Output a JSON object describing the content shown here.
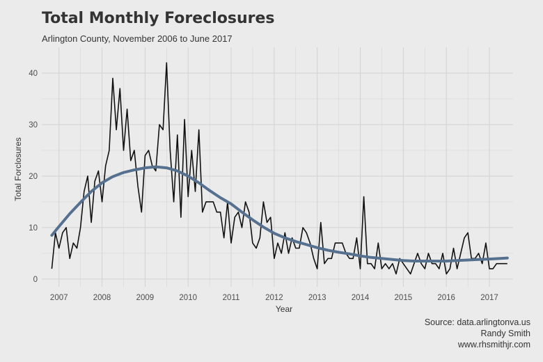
{
  "chart_data": {
    "type": "line",
    "title": "Total Monthly Foreclosures",
    "subtitle": "Arlington County, November 2006 to June 2017",
    "xlabel": "Year",
    "ylabel": "Total Forclosures",
    "xlim": [
      2006.6,
      2017.55
    ],
    "ylim": [
      -1.5,
      45
    ],
    "x_ticks": [
      2007,
      2008,
      2009,
      2010,
      2011,
      2012,
      2013,
      2014,
      2015,
      2016,
      2017
    ],
    "y_ticks": [
      0,
      10,
      20,
      30,
      40
    ],
    "grid": true,
    "legend": "none",
    "caption": [
      "Source: data.arlingtonva.us",
      "Randy Smith",
      "www.rhsmithjr.com"
    ],
    "colors": {
      "raw": "#111111",
      "smooth": "#56708f",
      "grid": "#d2d2d2",
      "background": "#ebebeb"
    },
    "series": [
      {
        "kind": "raw",
        "x": [
          2006.833,
          2006.917,
          2007.0,
          2007.083,
          2007.167,
          2007.25,
          2007.333,
          2007.417,
          2007.5,
          2007.583,
          2007.667,
          2007.75,
          2007.833,
          2007.917,
          2008.0,
          2008.083,
          2008.167,
          2008.25,
          2008.333,
          2008.417,
          2008.5,
          2008.583,
          2008.667,
          2008.75,
          2008.833,
          2008.917,
          2009.0,
          2009.083,
          2009.167,
          2009.25,
          2009.333,
          2009.417,
          2009.5,
          2009.583,
          2009.667,
          2009.75,
          2009.833,
          2009.917,
          2010.0,
          2010.083,
          2010.167,
          2010.25,
          2010.333,
          2010.417,
          2010.5,
          2010.583,
          2010.667,
          2010.75,
          2010.833,
          2010.917,
          2011.0,
          2011.083,
          2011.167,
          2011.25,
          2011.333,
          2011.417,
          2011.5,
          2011.583,
          2011.667,
          2011.75,
          2011.833,
          2011.917,
          2012.0,
          2012.083,
          2012.167,
          2012.25,
          2012.333,
          2012.417,
          2012.5,
          2012.583,
          2012.667,
          2012.75,
          2012.833,
          2012.917,
          2013.0,
          2013.083,
          2013.167,
          2013.25,
          2013.333,
          2013.417,
          2013.5,
          2013.583,
          2013.667,
          2013.75,
          2013.833,
          2013.917,
          2014.0,
          2014.083,
          2014.167,
          2014.25,
          2014.333,
          2014.417,
          2014.5,
          2014.583,
          2014.667,
          2014.75,
          2014.833,
          2014.917,
          2015.0,
          2015.083,
          2015.167,
          2015.25,
          2015.333,
          2015.417,
          2015.5,
          2015.583,
          2015.667,
          2015.75,
          2015.833,
          2015.917,
          2016.0,
          2016.083,
          2016.167,
          2016.25,
          2016.333,
          2016.417,
          2016.5,
          2016.583,
          2016.667,
          2016.75,
          2016.833,
          2016.917,
          2017.0,
          2017.083,
          2017.167,
          2017.25,
          2017.333,
          2017.417
        ],
        "y": [
          2,
          9,
          6,
          9,
          10,
          4,
          7,
          6,
          10,
          17,
          20,
          11,
          19,
          21,
          15,
          22,
          25,
          39,
          29,
          37,
          25,
          33,
          23,
          25,
          18,
          13,
          24,
          25,
          22,
          21,
          30,
          29,
          42,
          25,
          15,
          28,
          12,
          31,
          16,
          25,
          17,
          29,
          13,
          15,
          15,
          15,
          13,
          13,
          8,
          15,
          7,
          12,
          13,
          10,
          15,
          13,
          7,
          6,
          8,
          15,
          11,
          12,
          4,
          7,
          5,
          9,
          5,
          8,
          6,
          6,
          10,
          9,
          7,
          4,
          2,
          11,
          3,
          4,
          4,
          7,
          7,
          7,
          5,
          4,
          4,
          8,
          2,
          16,
          3,
          3,
          2,
          7,
          2,
          3,
          2,
          3,
          1,
          4,
          3,
          2,
          1,
          3,
          5,
          3,
          2,
          5,
          3,
          3,
          2,
          5,
          1,
          2,
          6,
          2,
          5,
          8,
          9,
          4,
          4,
          5,
          3,
          7,
          2,
          2,
          3,
          3,
          3,
          3
        ]
      },
      {
        "kind": "smooth",
        "x": [
          2006.833,
          2007.0,
          2007.25,
          2007.5,
          2007.75,
          2008.0,
          2008.25,
          2008.5,
          2008.75,
          2009.0,
          2009.25,
          2009.5,
          2009.75,
          2010.0,
          2010.25,
          2010.5,
          2010.75,
          2011.0,
          2011.25,
          2011.5,
          2011.75,
          2012.0,
          2012.25,
          2012.5,
          2012.75,
          2013.0,
          2013.25,
          2013.5,
          2013.75,
          2014.0,
          2014.25,
          2014.5,
          2014.75,
          2015.0,
          2015.25,
          2015.5,
          2015.75,
          2016.0,
          2016.25,
          2016.5,
          2016.75,
          2017.0,
          2017.25,
          2017.417
        ],
        "y": [
          8.5,
          10.2,
          12.7,
          14.9,
          17.0,
          18.7,
          19.9,
          20.7,
          21.2,
          21.6,
          21.8,
          21.6,
          21.0,
          20.0,
          18.7,
          17.2,
          15.8,
          14.6,
          13.0,
          11.5,
          10.1,
          8.9,
          8.0,
          7.3,
          6.7,
          6.1,
          5.6,
          5.2,
          4.9,
          4.5,
          4.2,
          4.0,
          3.8,
          3.6,
          3.5,
          3.5,
          3.5,
          3.5,
          3.6,
          3.7,
          3.8,
          3.9,
          4.0,
          4.1
        ]
      }
    ]
  }
}
